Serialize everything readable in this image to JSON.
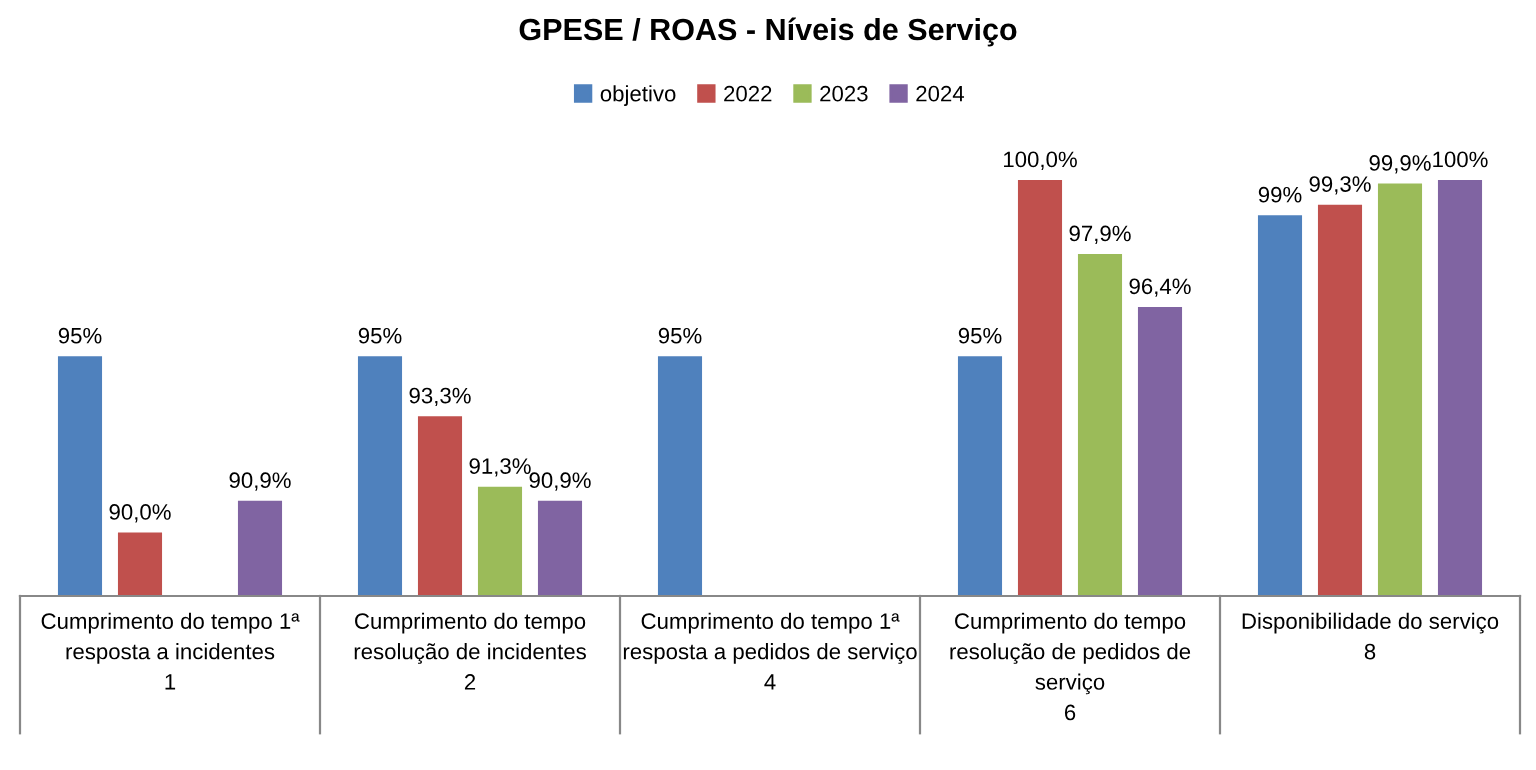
{
  "chart_data": {
    "type": "bar",
    "title": "GPESE / ROAS - Níveis de Serviço",
    "categories": [
      "Cumprimento do tempo 1ª\nresposta a incidentes\n1",
      "Cumprimento do tempo\nresolução de incidentes\n2",
      "Cumprimento do tempo 1ª\nresposta a pedidos de serviço\n4",
      "Cumprimento do tempo\nresolução de pedidos de\nserviço\n6",
      "Disponibilidade do serviço\n8"
    ],
    "series": [
      {
        "name": "objetivo",
        "color": "#4f81bd",
        "values": [
          95,
          95,
          95,
          95,
          99
        ],
        "value_labels": [
          "95%",
          "95%",
          "95%",
          "95%",
          "99%"
        ]
      },
      {
        "name": "2022",
        "color": "#c0504d",
        "values": [
          90.0,
          93.3,
          null,
          100.0,
          99.3
        ],
        "value_labels": [
          "90,0%",
          "93,3%",
          null,
          "100,0%",
          "99,3%"
        ]
      },
      {
        "name": "2023",
        "color": "#9bbb59",
        "values": [
          null,
          91.3,
          null,
          97.9,
          99.9
        ],
        "value_labels": [
          null,
          "91,3%",
          null,
          "97,9%",
          "99,9%"
        ]
      },
      {
        "name": "2024",
        "color": "#8064a2",
        "values": [
          90.9,
          90.9,
          null,
          96.4,
          100
        ],
        "value_labels": [
          "90,9%",
          "90,9%",
          null,
          "96,4%",
          "100%"
        ]
      }
    ],
    "ylim": [
      88.2,
      100
    ],
    "legend": "top"
  }
}
